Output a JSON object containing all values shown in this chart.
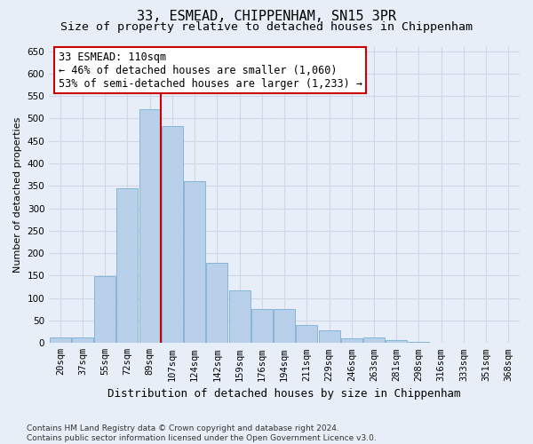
{
  "title": "33, ESMEAD, CHIPPENHAM, SN15 3PR",
  "subtitle": "Size of property relative to detached houses in Chippenham",
  "xlabel": "Distribution of detached houses by size in Chippenham",
  "ylabel": "Number of detached properties",
  "categories": [
    "20sqm",
    "37sqm",
    "55sqm",
    "72sqm",
    "89sqm",
    "107sqm",
    "124sqm",
    "142sqm",
    "159sqm",
    "176sqm",
    "194sqm",
    "211sqm",
    "229sqm",
    "246sqm",
    "263sqm",
    "281sqm",
    "298sqm",
    "316sqm",
    "333sqm",
    "351sqm",
    "368sqm"
  ],
  "values": [
    12,
    12,
    148,
    345,
    520,
    483,
    360,
    178,
    118,
    76,
    76,
    40,
    28,
    10,
    12,
    7,
    2,
    1,
    0,
    0,
    0
  ],
  "bar_color": "#b8d0ea",
  "bar_edge_color": "#7aafd4",
  "marker_bar_index": 5,
  "marker_color": "#cc0000",
  "annotation_text": "33 ESMEAD: 110sqm\n← 46% of detached houses are smaller (1,060)\n53% of semi-detached houses are larger (1,233) →",
  "annotation_box_facecolor": "#ffffff",
  "annotation_box_edge_color": "#cc0000",
  "ylim": [
    0,
    660
  ],
  "yticks": [
    0,
    50,
    100,
    150,
    200,
    250,
    300,
    350,
    400,
    450,
    500,
    550,
    600,
    650
  ],
  "bg_color": "#e8eef8",
  "grid_color": "#d0d8e8",
  "footer_line1": "Contains HM Land Registry data © Crown copyright and database right 2024.",
  "footer_line2": "Contains public sector information licensed under the Open Government Licence v3.0.",
  "title_fontsize": 11,
  "subtitle_fontsize": 9.5,
  "xlabel_fontsize": 9,
  "ylabel_fontsize": 8,
  "tick_fontsize": 7.5,
  "footer_fontsize": 6.5,
  "annotation_fontsize": 8.5
}
